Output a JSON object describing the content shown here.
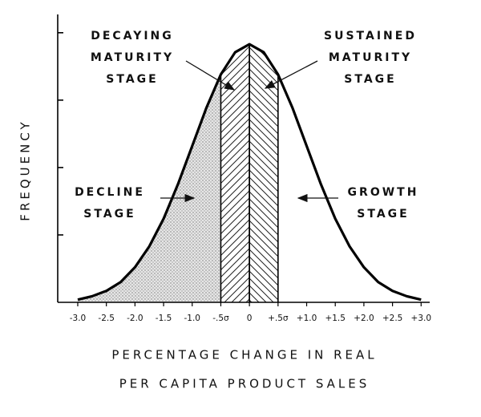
{
  "chart_data": {
    "type": "line",
    "ylabel": "FREQUENCY",
    "xlabel": [
      "PERCENTAGE CHANGE IN REAL",
      "PER CAPITA PRODUCT SALES"
    ],
    "x": [
      -3,
      -2.75,
      -2.5,
      -2.25,
      -2,
      -1.75,
      -1.5,
      -1.25,
      -1,
      -0.75,
      -0.5,
      -0.25,
      0,
      0.25,
      0.5,
      0.75,
      1,
      1.25,
      1.5,
      1.75,
      2,
      2.25,
      2.5,
      2.75,
      3
    ],
    "values": [
      0.04,
      0.09,
      0.17,
      0.3,
      0.52,
      0.83,
      1.24,
      1.75,
      2.32,
      2.89,
      3.38,
      3.71,
      3.83,
      3.71,
      3.38,
      2.89,
      2.32,
      1.75,
      1.24,
      0.83,
      0.52,
      0.3,
      0.17,
      0.09,
      0.04
    ],
    "color": "#000000",
    "xlim": [
      -3.35,
      3.15
    ],
    "ylim": [
      0,
      4.2
    ],
    "yticks": [
      1,
      2,
      3,
      4
    ],
    "xticks": [
      {
        "value": -3,
        "label": "-3.0"
      },
      {
        "value": -2.5,
        "label": "-2.5"
      },
      {
        "value": -2,
        "label": "-2.0"
      },
      {
        "value": -1.5,
        "label": "-1.5"
      },
      {
        "value": -1,
        "label": "-1.0"
      },
      {
        "value": -0.5,
        "label": "-.5σ"
      },
      0,
      {
        "value": 0.5,
        "label": "+.5σ"
      },
      {
        "value": 1,
        "label": "+1.0"
      },
      {
        "value": 1.5,
        "label": "+1.5"
      },
      {
        "value": 2,
        "label": "+2.0"
      },
      {
        "value": 2.5,
        "label": "+2.5"
      },
      {
        "value": 3,
        "label": "+3.0"
      }
    ],
    "regions": [
      {
        "from": -3,
        "to": -0.5,
        "pattern": "dots"
      },
      {
        "from": -0.5,
        "to": 0,
        "pattern": "hatch-left"
      },
      {
        "from": 0,
        "to": 0.5,
        "pattern": "hatch-right"
      }
    ],
    "annotations": [
      {
        "lines": [
          "DECAYING",
          "MATURITY",
          "STAGE"
        ]
      },
      {
        "lines": [
          "SUSTAINED",
          "MATURITY",
          "STAGE"
        ]
      },
      {
        "lines": [
          "DECLINE",
          "STAGE"
        ]
      },
      {
        "lines": [
          "GROWTH",
          "STAGE"
        ]
      }
    ]
  }
}
